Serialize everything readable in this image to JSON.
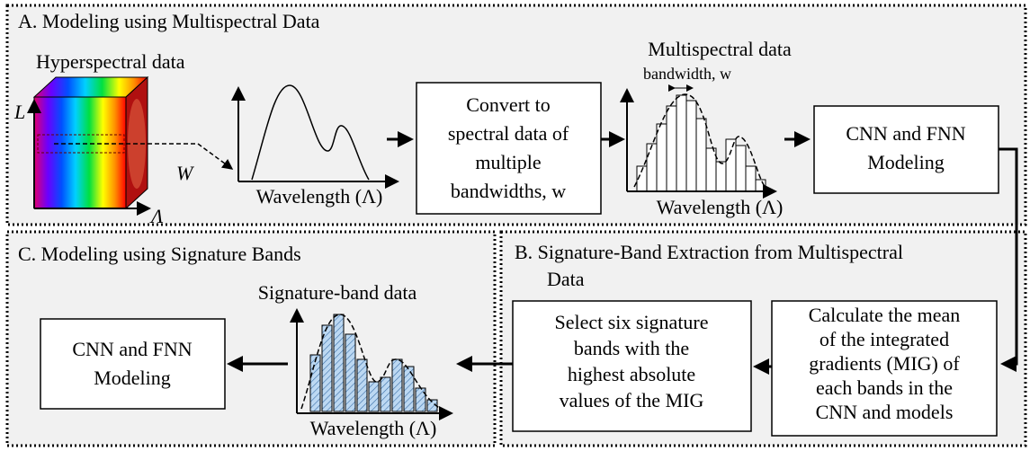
{
  "panels": {
    "a": {
      "title": "A. Modeling using Multispectral Data",
      "cube_label": "Hyperspectral data",
      "axis_l": "L",
      "axis_w": "W",
      "axis_lambda": "Λ",
      "plot_xlabel": "Wavelength (Λ)",
      "convert_box": [
        "Convert to",
        "spectral data of",
        "multiple",
        "bandwidths, w"
      ],
      "multispectral_title": "Multispectral data",
      "bandwidth_label": "bandwidth,  w",
      "multispectral_xlabel": "Wavelength (Λ)",
      "model_box": [
        "CNN and FNN",
        "Modeling"
      ]
    },
    "b": {
      "title": [
        "B. Signature-Band Extraction from Multispectral",
        "Data"
      ],
      "mig_box": [
        "Calculate the mean",
        "of the integrated",
        "gradients (MIG) of",
        "each bands in the",
        "CNN and models"
      ],
      "select_box": [
        "Select six signature",
        "bands with the",
        "highest absolute",
        "values of the MIG"
      ]
    },
    "c": {
      "title": "C. Modeling using Signature Bands",
      "signature_title": "Signature-band data",
      "signature_xlabel": "Wavelength (Λ)",
      "model_box": [
        "CNN and FNN",
        "Modeling"
      ]
    }
  }
}
